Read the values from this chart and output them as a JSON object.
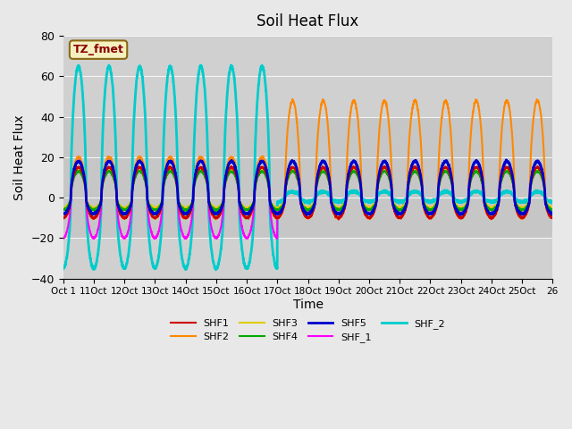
{
  "title": "Soil Heat Flux",
  "ylabel": "Soil Heat Flux",
  "xlabel": "Time",
  "ylim": [
    -40,
    80
  ],
  "background_color": "#e8e8e8",
  "plot_bg_color": "#d0d0d0",
  "legend_label": "TZ_fmet",
  "xtick_positions": [
    0,
    1,
    2,
    3,
    4,
    5,
    6,
    7,
    8,
    9,
    10,
    11,
    12,
    13,
    14,
    15,
    16
  ],
  "xtick_labels": [
    "Oct 1",
    "11Oct",
    "12Oct",
    "13Oct",
    "14Oct",
    "15Oct",
    "16Oct",
    "17Oct",
    "18Oct",
    "19Oct",
    "20Oct",
    "21Oct",
    "22Oct",
    "23Oct",
    "24Oct",
    "25Oct",
    "26"
  ],
  "series": {
    "SHF1": {
      "color": "#cc0000",
      "lw": 1.5
    },
    "SHF2": {
      "color": "#ff8800",
      "lw": 1.5
    },
    "SHF3": {
      "color": "#ddcc00",
      "lw": 1.5
    },
    "SHF4": {
      "color": "#00aa00",
      "lw": 1.5
    },
    "SHF5": {
      "color": "#0000cc",
      "lw": 2.0
    },
    "SHF_1": {
      "color": "#ff00ff",
      "lw": 1.5
    },
    "SHF_2": {
      "color": "#00cccc",
      "lw": 2.0
    }
  },
  "n_days": 16,
  "regime_change": 7,
  "shf2_amp_before": 20,
  "shf2_amp_after": 48,
  "shf_2_amp_before": 65,
  "shf_2_trough_before": -35,
  "shf5_amp": 18,
  "shf5_trough": -8
}
